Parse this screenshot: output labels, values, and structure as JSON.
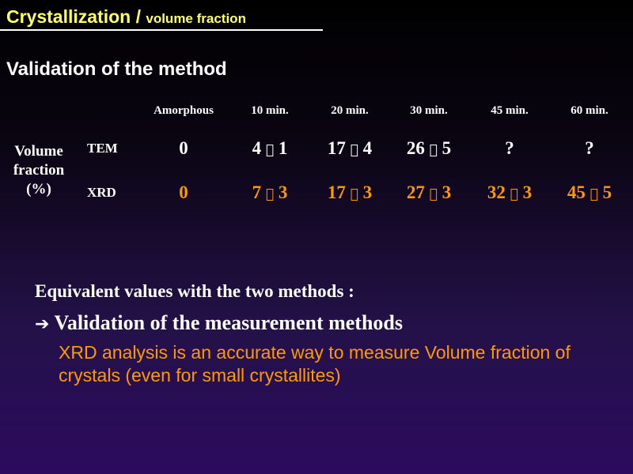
{
  "title": {
    "main": "Crystallization / ",
    "sub": "volume fraction"
  },
  "subtitle": "Validation of the method",
  "table": {
    "headers": [
      "Amorphous",
      "10 min.",
      "20 min.",
      "30 min.",
      "45 min.",
      "60 min."
    ],
    "row_group_label": [
      "Volume",
      "fraction",
      "(%)"
    ],
    "rows": [
      {
        "label": "TEM",
        "cells": [
          {
            "v": "0"
          },
          {
            "v": "4",
            "pm": "",
            "e": "1"
          },
          {
            "v": "17",
            "pm": "",
            "e": "4"
          },
          {
            "v": "26",
            "pm": "",
            "e": "5"
          },
          {
            "v": "?"
          },
          {
            "v": "?"
          }
        ]
      },
      {
        "label": "XRD",
        "cells": [
          {
            "v": "0"
          },
          {
            "v": "7",
            "pm": "",
            "e": "3"
          },
          {
            "v": "17",
            "pm": "",
            "e": "3"
          },
          {
            "v": "27",
            "pm": "",
            "e": "3"
          },
          {
            "v": "32",
            "pm": "",
            "e": "3"
          },
          {
            "v": "45",
            "pm": "",
            "e": "5"
          }
        ]
      }
    ]
  },
  "bullet1": "Equivalent values with the two methods :",
  "bullet2": {
    "arrow": "➔",
    "text": "Validation of the measurement methods"
  },
  "note": "XRD analysis is an accurate way to measure Volume fraction of crystals (even for small crystallites)",
  "colors": {
    "title": "#ffff66",
    "highlight": "#ff9900",
    "text": "#ffffff"
  }
}
